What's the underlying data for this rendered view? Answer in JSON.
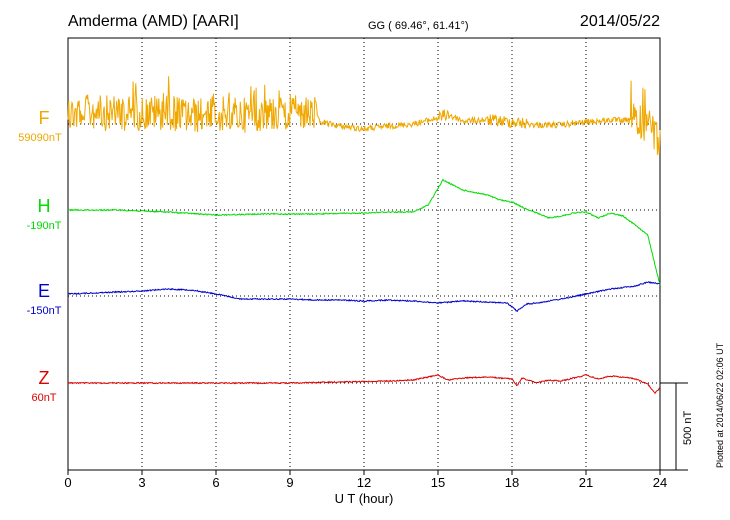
{
  "header": {
    "station": "Amderma (AMD)  [AARI]",
    "coords": "GG ( 69.46°,  61.41°)",
    "date": "2014/05/22"
  },
  "footer_note": "Plotted at 2014/06/22 02:06 UT",
  "scale_bar_label": "500 nT",
  "chart_data": {
    "type": "line",
    "title": "Amderma (AMD)  [AARI]",
    "xlabel": "U T (hour)",
    "xlim": [
      0,
      24
    ],
    "xticks": [
      "0",
      "3",
      "6",
      "9",
      "12",
      "15",
      "18",
      "21",
      "24"
    ],
    "grid": true,
    "vertical_scale_nT": 500,
    "series": [
      {
        "name": "F",
        "baseline_label": "59090nT",
        "color": "#f0a800",
        "noise": 18,
        "points": [
          [
            0,
            -10
          ],
          [
            1,
            -12
          ],
          [
            2,
            -10
          ],
          [
            3,
            -11
          ],
          [
            4,
            -12
          ],
          [
            5,
            -8
          ],
          [
            6,
            -10
          ],
          [
            7,
            -9
          ],
          [
            8,
            -10
          ],
          [
            9,
            -12
          ],
          [
            10,
            -10
          ],
          [
            10.2,
            -2
          ],
          [
            11,
            2
          ],
          [
            12,
            5
          ],
          [
            13,
            2
          ],
          [
            14,
            0
          ],
          [
            15,
            -6
          ],
          [
            15.4,
            -10
          ],
          [
            16,
            -3
          ],
          [
            17,
            -4
          ],
          [
            18,
            -2
          ],
          [
            19,
            1
          ],
          [
            20,
            1
          ],
          [
            21,
            -2
          ],
          [
            22,
            -4
          ],
          [
            23,
            -3
          ],
          [
            23.6,
            1
          ],
          [
            24,
            20
          ]
        ]
      },
      {
        "name": "H",
        "baseline_label": "-190nT",
        "color": "#00dd00",
        "noise": 0,
        "points": [
          [
            0,
            0
          ],
          [
            2,
            0
          ],
          [
            4,
            2
          ],
          [
            6,
            5
          ],
          [
            8,
            4
          ],
          [
            10,
            4
          ],
          [
            12,
            3
          ],
          [
            13,
            2
          ],
          [
            14,
            2
          ],
          [
            14.6,
            -5
          ],
          [
            15.2,
            -30
          ],
          [
            15.6,
            -25
          ],
          [
            16,
            -20
          ],
          [
            17,
            -15
          ],
          [
            17.5,
            -10
          ],
          [
            18,
            -8
          ],
          [
            18.5,
            -2
          ],
          [
            19,
            3
          ],
          [
            19.5,
            8
          ],
          [
            20,
            6
          ],
          [
            20.5,
            3
          ],
          [
            21,
            2
          ],
          [
            21.5,
            8
          ],
          [
            22,
            3
          ],
          [
            22.5,
            6
          ],
          [
            23,
            15
          ],
          [
            23.5,
            25
          ],
          [
            24,
            75
          ]
        ]
      },
      {
        "name": "E",
        "baseline_label": "-150nT",
        "color": "#0000cc",
        "noise": 0,
        "points": [
          [
            0,
            -2
          ],
          [
            1,
            -3
          ],
          [
            2,
            -4
          ],
          [
            3,
            -5
          ],
          [
            4,
            -7
          ],
          [
            5,
            -6
          ],
          [
            6,
            -2
          ],
          [
            7,
            3
          ],
          [
            8,
            3
          ],
          [
            9,
            3
          ],
          [
            10,
            4
          ],
          [
            11,
            4
          ],
          [
            12,
            5
          ],
          [
            13,
            4
          ],
          [
            14,
            5
          ],
          [
            15,
            7
          ],
          [
            16,
            5
          ],
          [
            17,
            6
          ],
          [
            17.8,
            7
          ],
          [
            18.2,
            15
          ],
          [
            18.6,
            8
          ],
          [
            19,
            7
          ],
          [
            20,
            3
          ],
          [
            21,
            -2
          ],
          [
            22,
            -7
          ],
          [
            23,
            -10
          ],
          [
            23.5,
            -14
          ],
          [
            24,
            -12
          ]
        ]
      },
      {
        "name": "Z",
        "baseline_label": "60nT",
        "color": "#dd0000",
        "noise": 0,
        "points": [
          [
            0,
            0
          ],
          [
            3,
            0
          ],
          [
            6,
            0
          ],
          [
            9,
            0
          ],
          [
            11,
            -1
          ],
          [
            13,
            -2
          ],
          [
            14,
            -3
          ],
          [
            15,
            -8
          ],
          [
            15.4,
            -3
          ],
          [
            16,
            -5
          ],
          [
            17,
            -6
          ],
          [
            18,
            -4
          ],
          [
            18.2,
            3
          ],
          [
            18.4,
            -5
          ],
          [
            19,
            0
          ],
          [
            19.5,
            -3
          ],
          [
            20,
            -2
          ],
          [
            21,
            -8
          ],
          [
            21.5,
            -4
          ],
          [
            22,
            -7
          ],
          [
            22.5,
            -6
          ],
          [
            23,
            -4
          ],
          [
            23.5,
            1
          ],
          [
            23.8,
            10
          ],
          [
            24,
            5
          ]
        ]
      }
    ]
  }
}
